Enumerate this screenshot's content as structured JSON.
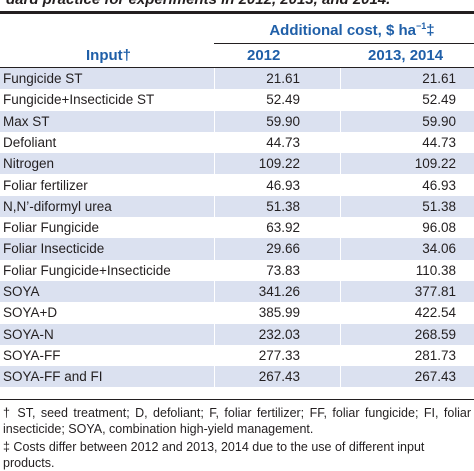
{
  "caption": "dard practice for experiments in 2012, 2013, and 2014.",
  "header": {
    "group_label": "Additional cost, $ ha",
    "group_sup": "−1",
    "group_mark": "‡",
    "col_input": "Input†",
    "col_2012": "2012",
    "col_2013": "2013, 2014"
  },
  "rows": [
    {
      "input": "Fungicide ST",
      "v2012": "21.61",
      "v2013": "21.61"
    },
    {
      "input": "Fungicide+Insecticide ST",
      "v2012": "52.49",
      "v2013": "52.49"
    },
    {
      "input": "Max ST",
      "v2012": "59.90",
      "v2013": "59.90"
    },
    {
      "input": "Defoliant",
      "v2012": "44.73",
      "v2013": "44.73"
    },
    {
      "input": "Nitrogen",
      "v2012": "109.22",
      "v2013": "109.22"
    },
    {
      "input": "Foliar fertilizer",
      "v2012": "46.93",
      "v2013": "46.93"
    },
    {
      "input": "N,N’-diformyl urea",
      "v2012": "51.38",
      "v2013": "51.38"
    },
    {
      "input": "Foliar Fungicide",
      "v2012": "63.92",
      "v2013": "96.08"
    },
    {
      "input": "Foliar Insecticide",
      "v2012": "29.66",
      "v2013": "34.06"
    },
    {
      "input": "Foliar Fungicide+Insecticide",
      "v2012": "73.83",
      "v2013": "110.38"
    },
    {
      "input": "SOYA",
      "v2012": "341.26",
      "v2013": "377.81"
    },
    {
      "input": "SOYA+D",
      "v2012": "385.99",
      "v2013": "422.54"
    },
    {
      "input": "SOYA-N",
      "v2012": "232.03",
      "v2013": "268.59"
    },
    {
      "input": "SOYA-FF",
      "v2012": "277.33",
      "v2013": "281.73"
    },
    {
      "input": "SOYA-FF and FI",
      "v2012": "267.43",
      "v2013": "267.43"
    }
  ],
  "footnotes": {
    "dagger": "† ST, seed treatment; D, defoliant; F, foliar fertilizer; FF, foliar fungicide; FI, foliar insecticide; SOYA, combination high-yield management.",
    "ddagger": "‡ Costs differ between 2012 and 2013, 2014 due to the use of different input products."
  },
  "colors": {
    "header_text": "#1f5fa8",
    "stripe": "#dbe1f0",
    "text": "#231f20"
  }
}
